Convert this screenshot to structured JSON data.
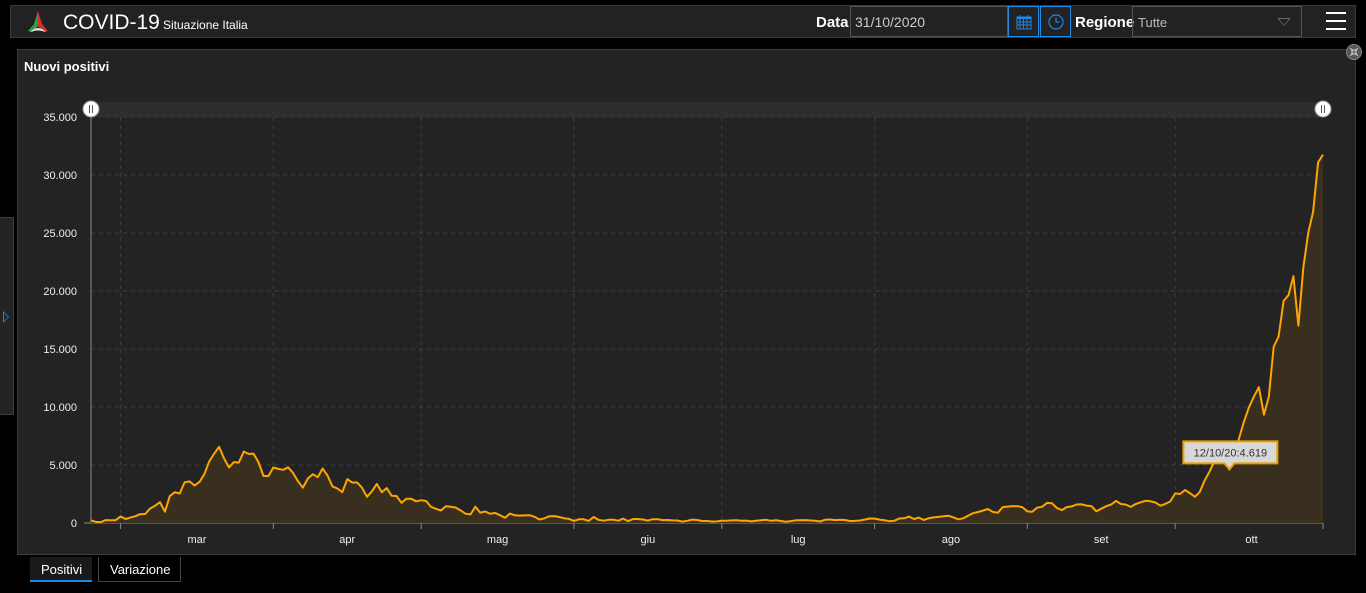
{
  "header": {
    "title": "COVID-19",
    "subtitle": "Situazione Italia",
    "date_label": "Data",
    "date_value": "31/10/2020",
    "region_label": "Regione",
    "region_value": "Tutte",
    "icons": [
      "calendar-icon",
      "clock-icon",
      "hamburger-menu-icon"
    ]
  },
  "panel": {
    "title": "Nuovi positivi"
  },
  "tabs": [
    {
      "label": "Positivi",
      "active": true
    },
    {
      "label": "Variazione",
      "active": false
    }
  ],
  "colors": {
    "line": "#ffa500",
    "fill": "#3b3020",
    "accent": "#1e88e5",
    "background": "#232323"
  },
  "chart_data": {
    "type": "area",
    "title": "Nuovi positivi",
    "x_start": "2020-02-24",
    "x_end": "2020-10-31",
    "x_tick_labels": [
      "mar",
      "apr",
      "mag",
      "giu",
      "lug",
      "ago",
      "set",
      "ott"
    ],
    "y_tick_labels": [
      "0",
      "5.000",
      "10.000",
      "15.000",
      "20.000",
      "25.000",
      "30.000",
      "35.000"
    ],
    "ylim": [
      0,
      35000
    ],
    "grid": true,
    "tooltip": {
      "text": "12/10/20:4.619",
      "date": "2020-10-12",
      "value": 4619
    },
    "values": [
      221,
      93,
      78,
      250,
      238,
      240,
      566,
      342,
      466,
      587,
      769,
      778,
      1247,
      1492,
      1797,
      977,
      2313,
      2651,
      2547,
      3497,
      3590,
      3233,
      3526,
      4207,
      5322,
      5986,
      6557,
      5560,
      4789,
      5249,
      5210,
      6153,
      5959,
      5974,
      5217,
      4050,
      4053,
      4782,
      4668,
      4585,
      4805,
      4316,
      3599,
      3039,
      3836,
      4204,
      3951,
      4694,
      4092,
      3153,
      2972,
      2667,
      3786,
      3493,
      3491,
      3047,
      2256,
      2729,
      3370,
      2646,
      3021,
      2357,
      2324,
      1739,
      2091,
      2086,
      1872,
      1965,
      1900,
      1389,
      1221,
      1075,
      1444,
      1401,
      1327,
      1083,
      802,
      744,
      1402,
      888,
      992,
      789,
      875,
      675,
      451,
      813,
      665,
      642,
      652,
      669,
      531,
      300,
      397,
      584,
      593,
      516,
      416,
      355,
      178,
      318,
      321,
      177,
      518,
      270,
      197,
      280,
      283,
      202,
      379,
      163,
      346,
      338,
      301,
      210,
      328,
      331,
      251,
      262,
      224,
      218,
      122,
      190,
      296,
      259,
      175,
      174,
      126,
      142,
      187,
      201,
      223,
      235,
      192,
      208,
      138,
      193,
      229,
      276,
      188,
      234,
      169,
      114,
      163,
      230,
      233,
      249,
      219,
      190,
      129,
      282,
      306,
      252,
      275,
      255,
      170,
      181,
      212,
      289,
      386,
      379,
      295,
      239,
      159,
      190,
      384,
      402,
      552,
      347,
      463,
      259,
      412,
      481,
      523,
      574,
      629,
      479,
      320,
      403,
      642,
      845,
      947,
      1071,
      1210,
      953,
      878,
      1367,
      1411,
      1460,
      1444,
      1365,
      996,
      975,
      1326,
      1397,
      1733,
      1695,
      1297,
      1108,
      1370,
      1434,
      1597,
      1616,
      1501,
      1458,
      1008,
      1229,
      1452,
      1585,
      1907,
      1638,
      1587,
      1392,
      1640,
      1786,
      1912,
      1869,
      1766,
      1494,
      1648,
      1851,
      2548,
      2499,
      2844,
      2578,
      2257,
      2677,
      3678,
      4458,
      5372,
      5724,
      5456,
      4619,
      5901,
      7332,
      8804,
      10010,
      10925,
      11705,
      9338,
      10874,
      15199,
      16079,
      19143,
      19644,
      21273,
      17012,
      21994,
      24991,
      26831,
      31084,
      31758
    ]
  }
}
